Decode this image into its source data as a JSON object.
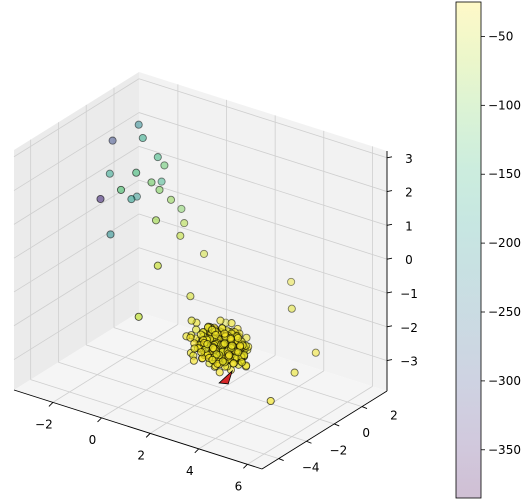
{
  "chart_data": {
    "type": "scatter",
    "projection": "3d",
    "title": "",
    "xlabel": "",
    "ylabel": "",
    "zlabel": "",
    "xlim": [
      -3.6,
      6.6
    ],
    "ylim": [
      -5.2,
      3.8
    ],
    "zlim": [
      -3.9,
      3.2
    ],
    "grid": true,
    "x_ticks": [
      "−2",
      "0",
      "2",
      "4",
      "6"
    ],
    "y_ticks": [
      "−4",
      "−2",
      "0",
      "2"
    ],
    "z_ticks": [
      "−3",
      "−2",
      "−1",
      "0",
      "1",
      "2",
      "3"
    ],
    "colorbar": {
      "colormap": "viridis",
      "alpha": 0.25,
      "range": [
        -385,
        -25
      ],
      "ticks": [
        "−50",
        "−100",
        "−150",
        "−200",
        "−250",
        "−300",
        "−350"
      ]
    },
    "highlight_marker": {
      "shape": "triangle",
      "color": "#d62728",
      "x": 2.8,
      "y": -1.2,
      "z": -3.1
    },
    "series": [
      {
        "marker": "circle",
        "edge_color": "#000000",
        "cluster": {
          "center": [
            2.4,
            -0.8,
            -2.4
          ],
          "spread": [
            1.1,
            0.9,
            0.7
          ],
          "count": 300,
          "value_range": [
            -40,
            -25
          ]
        },
        "points": [
          {
            "x": -2.8,
            "y": 0.5,
            "z": 2.2,
            "v": -300
          },
          {
            "x": -3.2,
            "y": 1.0,
            "z": 1.0,
            "v": -180
          },
          {
            "x": -2.2,
            "y": 1.2,
            "z": 0.5,
            "v": -200
          },
          {
            "x": -1.5,
            "y": 0.4,
            "z": 2.6,
            "v": -170
          },
          {
            "x": -1.0,
            "y": 0.6,
            "z": 2.1,
            "v": -150
          },
          {
            "x": -0.9,
            "y": 0.9,
            "z": 1.8,
            "v": -120
          },
          {
            "x": -0.8,
            "y": -0.2,
            "z": 1.6,
            "v": -110
          },
          {
            "x": -0.7,
            "y": 0.2,
            "z": 1.3,
            "v": -100
          },
          {
            "x": -0.4,
            "y": 0.5,
            "z": 1.0,
            "v": -90
          },
          {
            "x": -1.2,
            "y": -0.6,
            "z": 1.9,
            "v": -140
          },
          {
            "x": -1.8,
            "y": 0.1,
            "z": 0.8,
            "v": -190
          },
          {
            "x": -1.3,
            "y": 1.4,
            "z": 1.1,
            "v": -160
          },
          {
            "x": -0.5,
            "y": -0.4,
            "z": 0.6,
            "v": -80
          },
          {
            "x": -2.5,
            "y": -0.9,
            "z": 0.9,
            "v": -340
          },
          {
            "x": -0.2,
            "y": 1.1,
            "z": 0.2,
            "v": -70
          },
          {
            "x": -1.6,
            "y": -1.0,
            "z": 1.4,
            "v": -130
          },
          {
            "x": -0.6,
            "y": 1.6,
            "z": 0.4,
            "v": -100
          },
          {
            "x": 0.1,
            "y": 0.3,
            "z": 0.1,
            "v": -60
          },
          {
            "x": -1.9,
            "y": 0.8,
            "z": 2.8,
            "v": -220
          },
          {
            "x": -2.6,
            "y": 0.0,
            "z": -0.4,
            "v": -210
          },
          {
            "x": 0.2,
            "y": -1.5,
            "z": -0.3,
            "v": -55
          },
          {
            "x": 0.5,
            "y": 1.3,
            "z": -0.6,
            "v": -50
          },
          {
            "x": 4.4,
            "y": 0.8,
            "z": -1.2,
            "v": -40
          },
          {
            "x": 5.5,
            "y": 0.6,
            "z": -2.2,
            "v": -30
          },
          {
            "x": 5.2,
            "y": -0.4,
            "z": -2.6,
            "v": -35
          },
          {
            "x": 4.9,
            "y": -1.6,
            "z": -3.2,
            "v": -30
          },
          {
            "x": 0.8,
            "y": -0.2,
            "z": -1.4,
            "v": -45
          },
          {
            "x": -0.3,
            "y": -2.0,
            "z": -1.8,
            "v": -60
          },
          {
            "x": 3.8,
            "y": 1.8,
            "z": -0.8,
            "v": -35
          },
          {
            "x": 1.0,
            "y": 2.0,
            "z": -2.7,
            "v": -40
          }
        ]
      }
    ]
  }
}
